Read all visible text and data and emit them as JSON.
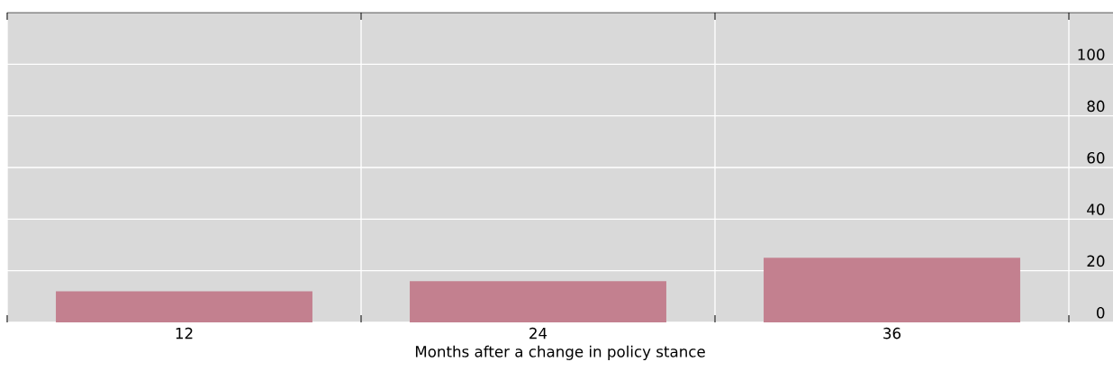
{
  "chart_data": {
    "type": "bar",
    "xlabel": "Months after a change in policy stance",
    "categories": [
      "12",
      "24",
      "36"
    ],
    "values": [
      12,
      16,
      25
    ],
    "color": "#c3808f",
    "ylim": [
      0,
      120
    ],
    "yticks": [
      0,
      20,
      40,
      60,
      80,
      100
    ],
    "grid": true
  }
}
